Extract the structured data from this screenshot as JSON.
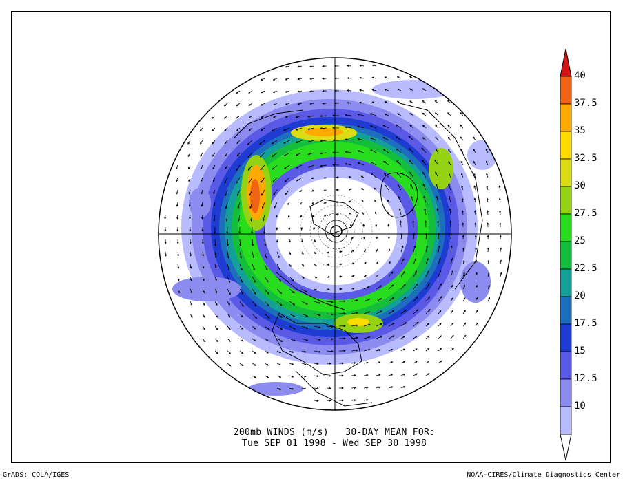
{
  "colorbar": {
    "levels": [
      {
        "label": "10",
        "color": "#b8bcff"
      },
      {
        "label": "12.5",
        "color": "#8c8cf0"
      },
      {
        "label": "15",
        "color": "#5a5ae6"
      },
      {
        "label": "17.5",
        "color": "#1e3cd2"
      },
      {
        "label": "20",
        "color": "#1e6ebe"
      },
      {
        "label": "22.5",
        "color": "#14a098"
      },
      {
        "label": "25",
        "color": "#14be3c"
      },
      {
        "label": "27.5",
        "color": "#28dc1e"
      },
      {
        "label": "30",
        "color": "#96d214"
      },
      {
        "label": "32.5",
        "color": "#dcdc14"
      },
      {
        "label": "35",
        "color": "#ffdc00"
      },
      {
        "label": "37.5",
        "color": "#ffaa00"
      },
      {
        "label": "40",
        "color": "#f06414"
      }
    ],
    "below_color": "#ffffff",
    "above_color": "#d21414"
  },
  "caption": {
    "line1": "200mb WINDS (m/s)   30-DAY MEAN FOR:",
    "line2": "Tue SEP 01 1998 - Wed SEP 30 1998"
  },
  "credits": {
    "left": "GrADS: COLA/IGES",
    "right": "NOAA-CIRES/Climate Diagnostics Center"
  }
}
